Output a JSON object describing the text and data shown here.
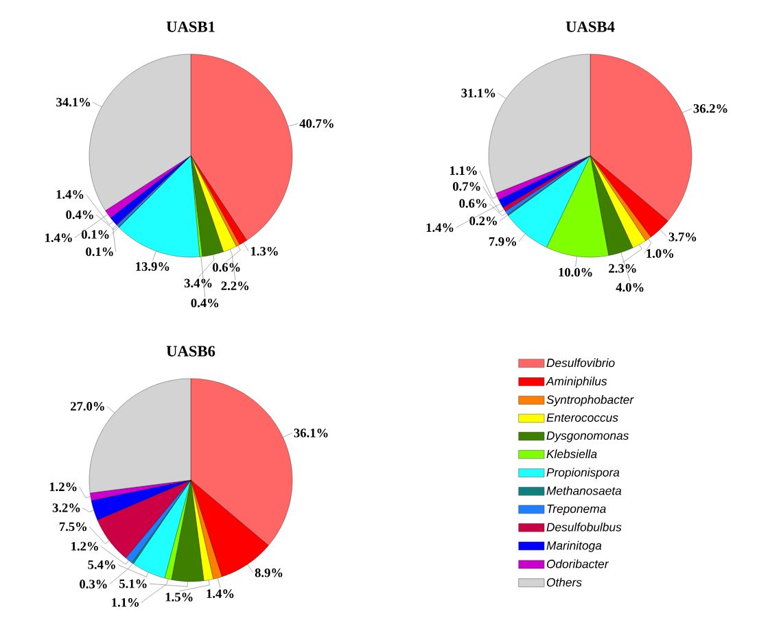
{
  "chart_data": [
    {
      "type": "pie",
      "title": "UASB1",
      "legend": false,
      "categories": [
        null,
        null,
        null,
        null,
        null,
        null,
        null,
        null,
        null,
        null,
        null,
        null,
        null
      ],
      "values": [
        40.7,
        1.3,
        0.6,
        2.2,
        3.4,
        0.4,
        13.9,
        0.1,
        0.4,
        0.1,
        1.4,
        1.4,
        34.1
      ],
      "value_labels": [
        "40.7%",
        "1.3%",
        "0.6%",
        "2.2%",
        "3.4%",
        "0.4%",
        "13.9%",
        "0.1%",
        "0.4%",
        "0.1%",
        "1.4%",
        "1.4%",
        "34.1%"
      ],
      "colors": [
        "#ff6666",
        "#ff0000",
        "#ff7f00",
        "#ffff00",
        "#3f7f00",
        "#7fff00",
        "#1fffff",
        "#0f7f7f",
        "#1f7fff",
        "#cc0044",
        "#0000ff",
        "#cc00cc",
        "#d3d3d3"
      ]
    },
    {
      "type": "pie",
      "title": "UASB4",
      "legend": false,
      "categories": [
        null,
        null,
        null,
        null,
        null,
        null,
        null,
        null,
        null,
        null,
        null,
        null,
        null
      ],
      "values": [
        36.2,
        3.7,
        1.0,
        2.3,
        4.0,
        10.0,
        7.9,
        0.2,
        0.6,
        0.7,
        1.4,
        1.1,
        31.1
      ],
      "value_labels": [
        "36.2%",
        "3.7%",
        "1.0%",
        "2.3%",
        "4.0%",
        "10.0%",
        "7.9%",
        "0.2%",
        "0.6%",
        "0.7%",
        "1.4%",
        "1.1%",
        "31.1%"
      ],
      "colors": [
        "#ff6666",
        "#ff0000",
        "#ff7f00",
        "#ffff00",
        "#3f7f00",
        "#7fff00",
        "#1fffff",
        "#0f7f7f",
        "#1f7fff",
        "#cc0044",
        "#0000ff",
        "#cc00cc",
        "#d3d3d3"
      ]
    },
    {
      "type": "pie",
      "title": "UASB6",
      "legend": "right",
      "categories": [
        "Desulfovibrio",
        "Aminiphilus",
        "Syntrophobacter",
        "Enterococcus",
        "Dysgonomonas",
        "Klebsiella",
        "Propionispora",
        "Methanosaeta",
        "Treponema",
        "Desulfobulbus",
        "Marinitoga",
        "Odoribacter",
        "Others"
      ],
      "values": [
        36.1,
        8.9,
        1.4,
        1.5,
        5.1,
        1.1,
        5.4,
        0.3,
        1.2,
        7.5,
        3.2,
        1.2,
        27.0
      ],
      "value_labels": [
        "36.1%",
        "8.9%",
        "1.4%",
        "1.5%",
        "5.1%",
        "1.1%",
        "5.4%",
        "0.3%",
        "1.2%",
        "7.5%",
        "3.2%",
        "1.2%",
        "27.0%"
      ],
      "colors": [
        "#ff6666",
        "#ff0000",
        "#ff7f00",
        "#ffff00",
        "#3f7f00",
        "#7fff00",
        "#1fffff",
        "#0f7f7f",
        "#1f7fff",
        "#cc0044",
        "#0000ff",
        "#cc00cc",
        "#d3d3d3"
      ]
    }
  ]
}
